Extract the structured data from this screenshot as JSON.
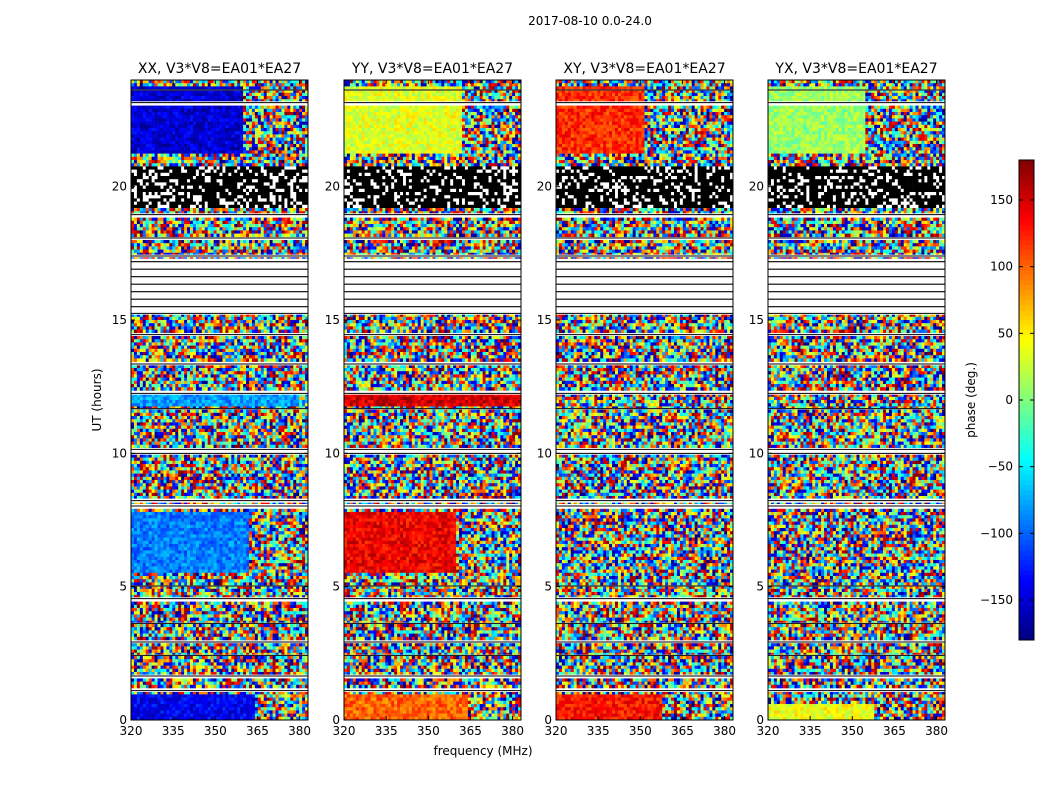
{
  "suptitle": "2017-08-10 0.0-24.0",
  "chart_data": {
    "type": "heatmap",
    "xlabel": "frequency (MHz)",
    "ylabel": "UT (hours)",
    "xlim": [
      320,
      383
    ],
    "ylim": [
      0,
      24
    ],
    "xticks": [
      320,
      335,
      350,
      365,
      380
    ],
    "yticks": [
      0,
      5,
      10,
      15,
      20
    ],
    "panels": [
      {
        "title": "XX, V3*V8=EA01*EA27",
        "base_phase": -150,
        "features": [
          {
            "t0": 21.2,
            "t1": 23.8,
            "f1": 360,
            "phase": -150
          },
          {
            "t0": 0.0,
            "t1": 1.0,
            "f1": 364,
            "phase": -140
          },
          {
            "t0": 5.5,
            "t1": 7.8,
            "f1": 362,
            "phase": -90
          },
          {
            "t0": 11.8,
            "t1": 12.2,
            "f1": 380,
            "phase": -80
          }
        ]
      },
      {
        "title": "YY, V3*V8=EA01*EA27",
        "base_phase": 40,
        "features": [
          {
            "t0": 21.2,
            "t1": 23.8,
            "f1": 362,
            "phase": 35
          },
          {
            "t0": 0.0,
            "t1": 1.0,
            "f1": 364,
            "phase": 100
          },
          {
            "t0": 5.5,
            "t1": 7.8,
            "f1": 360,
            "phase": 140
          },
          {
            "t0": 11.8,
            "t1": 12.2,
            "f1": 383,
            "phase": 150
          }
        ]
      },
      {
        "title": "XY, V3*V8=EA01*EA27",
        "base_phase": 120,
        "features": [
          {
            "t0": 21.2,
            "t1": 23.8,
            "f1": 352,
            "phase": 120
          },
          {
            "t0": 0.0,
            "t1": 1.0,
            "f1": 358,
            "phase": 130
          }
        ]
      },
      {
        "title": "YX, V3*V8=EA01*EA27",
        "base_phase": 20,
        "features": [
          {
            "t0": 21.2,
            "t1": 23.8,
            "f1": 355,
            "phase": 10
          },
          {
            "t0": 0.0,
            "t1": 0.6,
            "f1": 358,
            "phase": 40
          }
        ]
      }
    ],
    "flagged_hours": [
      [
        1.05,
        1.15
      ],
      [
        1.6,
        1.7
      ],
      [
        2.4,
        2.45
      ],
      [
        2.9,
        2.95
      ],
      [
        3.6,
        3.65
      ],
      [
        4.5,
        4.6
      ],
      [
        5.0,
        5.05
      ],
      [
        7.95,
        8.1
      ],
      [
        8.15,
        8.3
      ],
      [
        9.95,
        10.05
      ],
      [
        10.1,
        10.2
      ],
      [
        11.65,
        11.7
      ],
      [
        12.2,
        12.3
      ],
      [
        13.3,
        13.4
      ],
      [
        14.4,
        14.5
      ],
      [
        15.2,
        15.3
      ],
      [
        17.35,
        17.45
      ],
      [
        18.05,
        18.1
      ],
      [
        18.9,
        19.0
      ],
      [
        23.1,
        23.2
      ],
      [
        23.6,
        23.65
      ]
    ],
    "empty_hours": [
      [
        15.35,
        17.3
      ]
    ],
    "dense_hours": [
      [
        19.2,
        20.8
      ]
    ],
    "colorbar": {
      "label": "phase (deg.)",
      "range": [
        -180,
        180
      ],
      "ticks": [
        -150,
        -100,
        -50,
        0,
        50,
        100,
        150
      ],
      "tick_labels": [
        "−150",
        "−100",
        "−50",
        "0",
        "50",
        "100",
        "150"
      ],
      "colormap": "jet"
    }
  }
}
